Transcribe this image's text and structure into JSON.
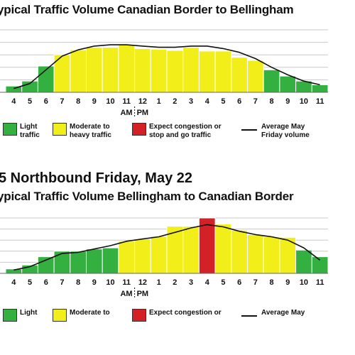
{
  "top": {
    "title": "ypical Traffic Volume Canadian Border to Bellingham",
    "legend": {
      "light": "Light traffic",
      "moderate": "Moderate to heavy traffic",
      "congestion": "Expect congestion or stop and go traffic",
      "average": "Average May Friday volume"
    }
  },
  "bottom": {
    "heading": "5 Northbound Friday, May 22",
    "title": "ypical Traffic Volume Bellingham to Canadian Border",
    "legend": {
      "light": "Light",
      "moderate": "Moderate to",
      "congestion": "Expect congestion or",
      "average": "Average May"
    }
  },
  "colors": {
    "light": "#33b040",
    "moderate": "#f2ee1a",
    "congestion": "#d42027",
    "line": "#111111",
    "grid": "#c8c8c8"
  },
  "chart_data": [
    {
      "type": "bar",
      "title": "ypical Traffic Volume Canadian Border to Bellingham",
      "categories": [
        "4",
        "5",
        "6",
        "7",
        "8",
        "9",
        "10",
        "11",
        "12",
        "1",
        "2",
        "3",
        "4",
        "5",
        "6",
        "7",
        "8",
        "9",
        "10",
        "11"
      ],
      "values": [
        10,
        18,
        42,
        60,
        68,
        72,
        72,
        76,
        70,
        69,
        67,
        72,
        66,
        66,
        56,
        51,
        36,
        26,
        18,
        12
      ],
      "status": [
        "light",
        "light",
        "light",
        "moderate",
        "moderate",
        "moderate",
        "moderate",
        "moderate",
        "moderate",
        "moderate",
        "moderate",
        "moderate",
        "moderate",
        "moderate",
        "moderate",
        "moderate",
        "light",
        "light",
        "light",
        "light"
      ],
      "line_values": [
        6,
        14,
        36,
        58,
        68,
        74,
        76,
        76,
        74,
        72,
        72,
        74,
        74,
        70,
        64,
        54,
        40,
        28,
        18,
        12
      ],
      "ampm_label": "AM PM",
      "ylim": [
        0,
        100
      ],
      "grid": true
    },
    {
      "type": "bar",
      "title": "ypical Traffic Volume Bellingham to Canadian Border",
      "categories": [
        "4",
        "5",
        "6",
        "7",
        "8",
        "9",
        "10",
        "11",
        "12",
        "1",
        "2",
        "3",
        "4",
        "5",
        "6",
        "7",
        "8",
        "9",
        "10",
        "11"
      ],
      "values": [
        8,
        15,
        30,
        40,
        40,
        44,
        46,
        58,
        62,
        67,
        85,
        85,
        100,
        89,
        78,
        70,
        66,
        65,
        42,
        30
      ],
      "status": [
        "light",
        "light",
        "light",
        "light",
        "light",
        "light",
        "light",
        "moderate",
        "moderate",
        "moderate",
        "moderate",
        "moderate",
        "congestion",
        "moderate",
        "moderate",
        "moderate",
        "moderate",
        "moderate",
        "light",
        "light"
      ],
      "line_values": [
        6,
        12,
        24,
        36,
        38,
        44,
        50,
        58,
        62,
        66,
        74,
        82,
        88,
        84,
        76,
        70,
        66,
        60,
        46,
        24
      ],
      "ampm_label": "AM PM",
      "ylim": [
        0,
        100
      ],
      "grid": true
    }
  ]
}
